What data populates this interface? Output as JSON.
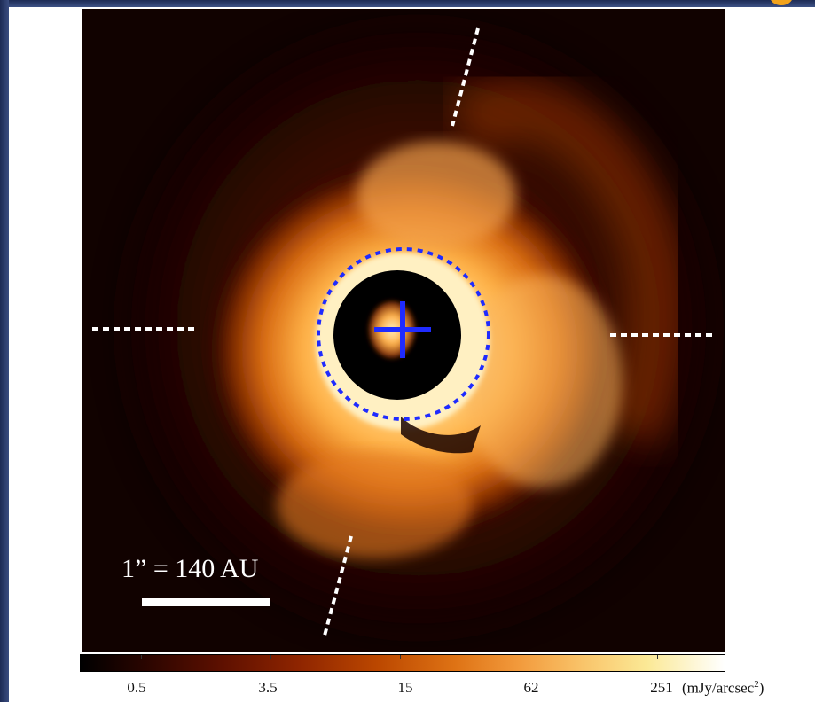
{
  "scale": {
    "label": "1” = 140 AU"
  },
  "colorbar": {
    "ticks": [
      "0.5",
      "3.5",
      "15",
      "62",
      "251"
    ],
    "unit_prefix": "(mJy/arcsec",
    "unit_exponent": "2",
    "unit_suffix": ")",
    "colormap": "black-red-orange-yellow-white"
  },
  "colors": {
    "marker": "#1f2bff",
    "dashed_lines": "#ffffff",
    "background_frame": "#1d2b55"
  },
  "icons": {
    "star_marker": "plus-cross-icon",
    "inner_mask_circle": "dashed-circle-icon"
  }
}
